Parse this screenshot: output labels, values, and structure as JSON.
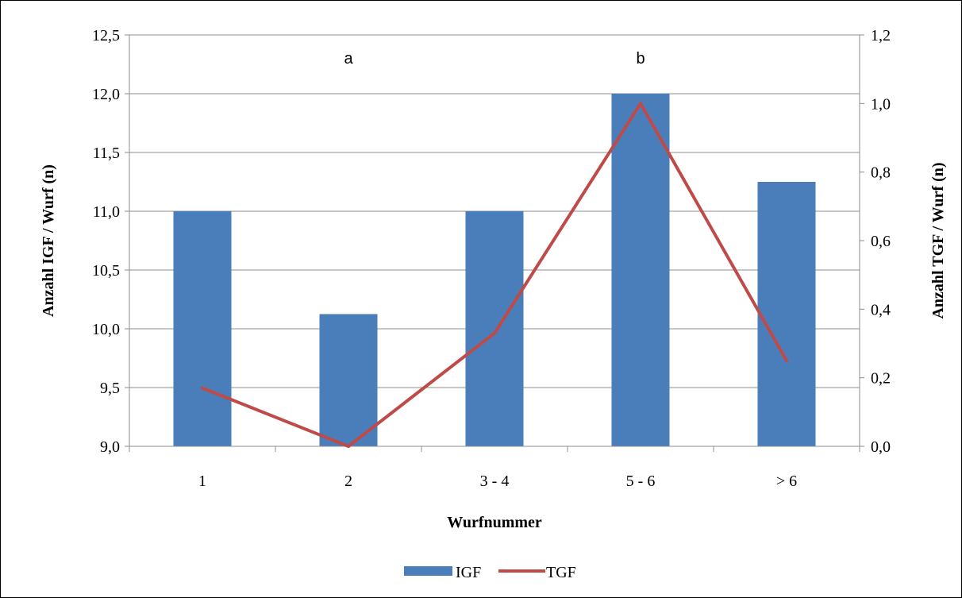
{
  "chart_data": {
    "type": "bar",
    "categories": [
      "1",
      "2",
      "3 - 4",
      "5 - 6",
      "> 6"
    ],
    "series": [
      {
        "name": "IGF",
        "type": "bar",
        "axis": "left",
        "values": [
          11.0,
          10.125,
          11.0,
          12.0,
          11.25
        ],
        "color": "#4a7ebb"
      },
      {
        "name": "TGF",
        "type": "line",
        "axis": "right",
        "values": [
          0.17,
          0.0,
          0.33,
          1.0,
          0.25
        ],
        "color": "#be4b48"
      }
    ],
    "xlabel": "Wurfnummer",
    "ylabel": "Anzahl IGF / Wurf (n)",
    "y2label": "Anzahl TGF / Wurf (n)",
    "ylim": [
      9.0,
      12.5
    ],
    "y2lim": [
      0.0,
      1.2
    ],
    "yticks": [
      "9,0",
      "9,5",
      "10,0",
      "10,5",
      "11,0",
      "11,5",
      "12,0",
      "12,5"
    ],
    "y2ticks": [
      "0,0",
      "0,2",
      "0,4",
      "0,6",
      "0,8",
      "1,0",
      "1,2"
    ],
    "annotations": [
      {
        "text": "a",
        "category": "2"
      },
      {
        "text": "b",
        "category": "5 - 6"
      }
    ],
    "grid": true,
    "legend": "bottom"
  }
}
